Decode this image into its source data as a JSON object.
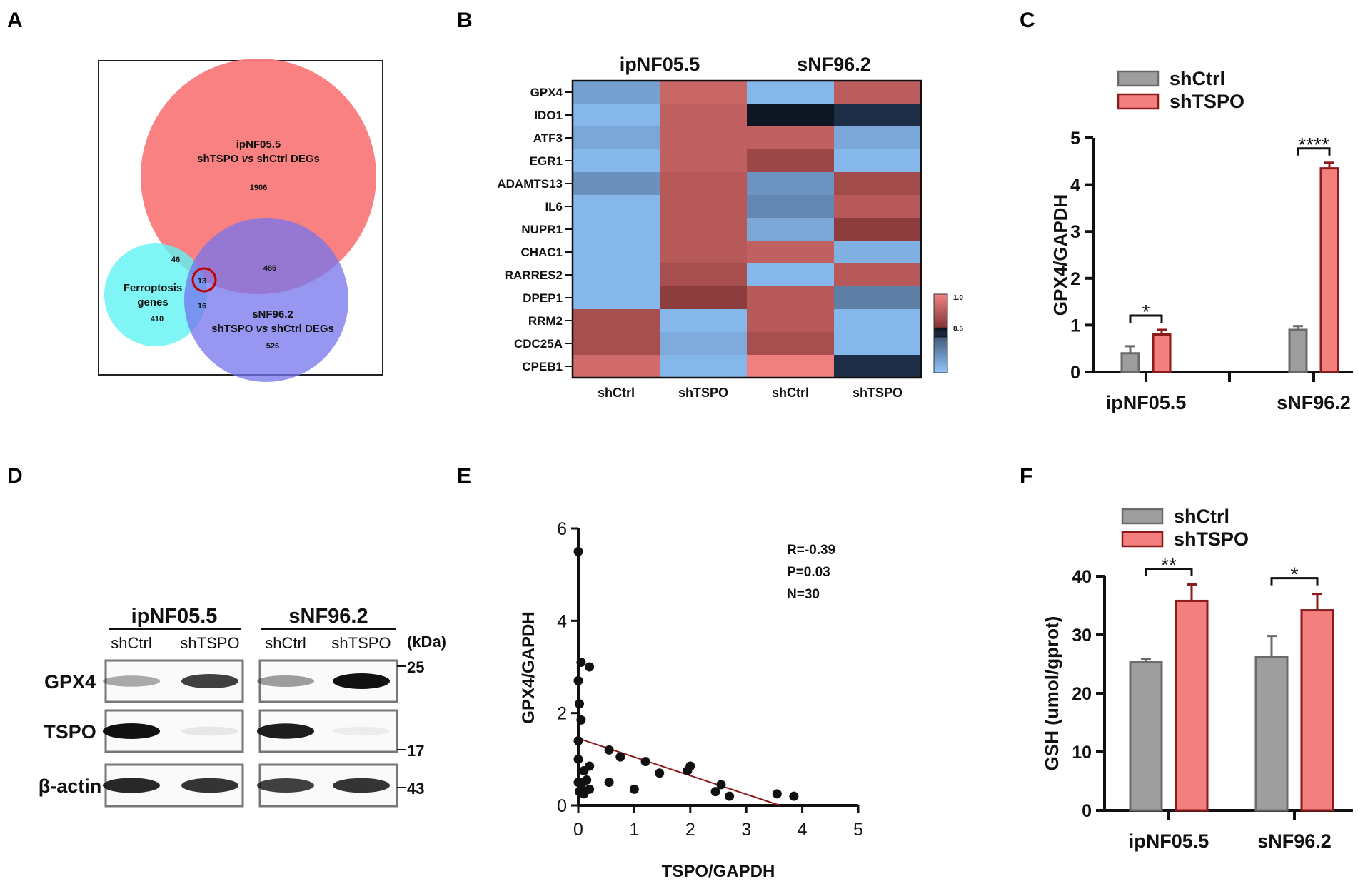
{
  "panel_letters": [
    "A",
    "B",
    "C",
    "D",
    "E",
    "F"
  ],
  "colors": {
    "red": "#f37f7f",
    "red_edge": "#8b1a1a",
    "grey": "#9e9e9e",
    "grey_edge": "#6a6a6a",
    "venn_red": "#fa7a7a",
    "venn_cyan": "#5ff2f2",
    "venn_blue": "#7474ee",
    "heat_high": "#f08080",
    "heat_mid": "#000000",
    "heat_low": "#8ec2f8"
  },
  "chart_data": [
    {
      "panel": "A",
      "type": "venn",
      "sets": [
        {
          "name": "ipNF05.5 shTSPO vs shCtrl DEGs",
          "line1": "ipNF05.5",
          "line2": "shTSPO",
          "vs": "vs",
          "line2b": "shCtrl DEGs",
          "unique": "1906"
        },
        {
          "name": "Ferroptosis genes",
          "line1": "Ferroptosis",
          "line2": "genes",
          "unique": "410"
        },
        {
          "name": "sNF96.2 shTSPO vs shCtrl DEGs",
          "line1": "sNF96.2",
          "line2": "shTSPO",
          "vs": "vs",
          "line2b": "shCtrl DEGs",
          "unique": "526"
        }
      ],
      "overlaps": {
        "ipNF05.5_ferroptosis": "46",
        "ipNF05.5_sNF96.2": "486",
        "ferroptosis_sNF96.2": "16",
        "all_three": "13"
      }
    },
    {
      "panel": "B",
      "type": "heatmap",
      "group_labels": [
        "ipNF05.5",
        "sNF96.2"
      ],
      "columns": [
        "shCtrl",
        "shTSPO",
        "shCtrl",
        "shTSPO"
      ],
      "rows": [
        "GPX4",
        "IDO1",
        "ATF3",
        "EGR1",
        "ADAMTS13",
        "IL6",
        "NUPR1",
        "CHAC1",
        "RARRES2",
        "DPEP1",
        "RRM2",
        "CDC25A",
        "CPEB1"
      ],
      "values": [
        [
          0.15,
          0.85,
          0.05,
          0.8
        ],
        [
          0.05,
          0.82,
          0.55,
          0.5
        ],
        [
          0.12,
          0.82,
          0.82,
          0.12
        ],
        [
          0.05,
          0.82,
          0.68,
          0.05
        ],
        [
          0.22,
          0.78,
          0.2,
          0.7
        ],
        [
          0.05,
          0.78,
          0.26,
          0.78
        ],
        [
          0.05,
          0.78,
          0.12,
          0.62
        ],
        [
          0.05,
          0.78,
          0.82,
          0.08
        ],
        [
          0.05,
          0.72,
          0.05,
          0.78
        ],
        [
          0.05,
          0.62,
          0.78,
          0.3
        ],
        [
          0.72,
          0.05,
          0.78,
          0.05
        ],
        [
          0.72,
          0.1,
          0.72,
          0.05
        ],
        [
          0.88,
          0.05,
          1.0,
          0.5
        ]
      ],
      "colorbar": {
        "ticks": [
          "1.0",
          "0.5"
        ]
      }
    },
    {
      "panel": "C",
      "type": "bar",
      "categories": [
        "ipNF05.5",
        "sNF96.2"
      ],
      "series": [
        {
          "name": "shCtrl",
          "values": [
            0.4,
            0.9
          ],
          "errors": [
            0.15,
            0.08
          ]
        },
        {
          "name": "shTSPO",
          "values": [
            0.8,
            4.35
          ],
          "errors": [
            0.1,
            0.12
          ]
        }
      ],
      "ylabel": "GPX4/GAPDH",
      "ylim": [
        0,
        5
      ],
      "yticks": [
        "0",
        "1",
        "2",
        "3",
        "4",
        "5"
      ],
      "significance": [
        "*",
        "****"
      ]
    },
    {
      "panel": "D",
      "type": "western-blot",
      "groups": [
        "ipNF05.5",
        "sNF96.2"
      ],
      "lanes": [
        "shCtrl",
        "shTSPO",
        "shCtrl",
        "shTSPO"
      ],
      "kda_label": "(kDa)",
      "rows": [
        {
          "name": "GPX4",
          "marker": "25",
          "intensity": [
            0.35,
            0.8,
            0.4,
            1.0
          ]
        },
        {
          "name": "TSPO",
          "marker": "17",
          "intensity": [
            1.0,
            0.08,
            0.95,
            0.03
          ]
        },
        {
          "name": "β-actin",
          "marker": "43",
          "intensity": [
            0.9,
            0.85,
            0.8,
            0.85
          ]
        }
      ]
    },
    {
      "panel": "E",
      "type": "scatter",
      "xlabel": "TSPO/GAPDH",
      "ylabel": "GPX4/GAPDH",
      "xlim": [
        0,
        5
      ],
      "ylim": [
        0,
        6
      ],
      "xticks": [
        "0",
        "1",
        "2",
        "3",
        "4",
        "5"
      ],
      "yticks": [
        "0",
        "2",
        "4",
        "6"
      ],
      "points": [
        [
          0.0,
          5.5
        ],
        [
          0.0,
          2.7
        ],
        [
          0.02,
          2.2
        ],
        [
          0.05,
          1.85
        ],
        [
          0.0,
          1.4
        ],
        [
          0.0,
          1.0
        ],
        [
          0.1,
          0.75
        ],
        [
          0.0,
          0.5
        ],
        [
          0.05,
          0.35
        ],
        [
          0.15,
          0.55
        ],
        [
          0.2,
          0.35
        ],
        [
          0.08,
          0.5
        ],
        [
          0.05,
          3.1
        ],
        [
          0.2,
          3.0
        ],
        [
          0.2,
          0.85
        ],
        [
          0.55,
          1.2
        ],
        [
          0.75,
          1.05
        ],
        [
          0.55,
          0.5
        ],
        [
          1.0,
          0.35
        ],
        [
          1.2,
          0.95
        ],
        [
          1.45,
          0.7
        ],
        [
          1.95,
          0.75
        ],
        [
          2.0,
          0.85
        ],
        [
          2.45,
          0.3
        ],
        [
          2.55,
          0.45
        ],
        [
          2.7,
          0.2
        ],
        [
          3.55,
          0.25
        ],
        [
          3.85,
          0.2
        ],
        [
          0.02,
          0.3
        ],
        [
          0.1,
          0.25
        ]
      ],
      "fit": {
        "x": [
          0,
          3.6
        ],
        "y": [
          1.45,
          0
        ]
      },
      "stats": [
        "R=-0.39",
        "P=0.03",
        "N=30"
      ]
    },
    {
      "panel": "F",
      "type": "bar",
      "categories": [
        "ipNF05.5",
        "sNF96.2"
      ],
      "series": [
        {
          "name": "shCtrl",
          "values": [
            25.3,
            26.2
          ],
          "errors": [
            0.6,
            3.6
          ]
        },
        {
          "name": "shTSPO",
          "values": [
            35.8,
            34.2
          ],
          "errors": [
            2.8,
            2.8
          ]
        }
      ],
      "ylabel": "GSH (umol/gprot)",
      "ylim": [
        0,
        40
      ],
      "yticks": [
        "0",
        "10",
        "20",
        "30",
        "40"
      ],
      "significance": [
        "**",
        "*"
      ]
    }
  ]
}
